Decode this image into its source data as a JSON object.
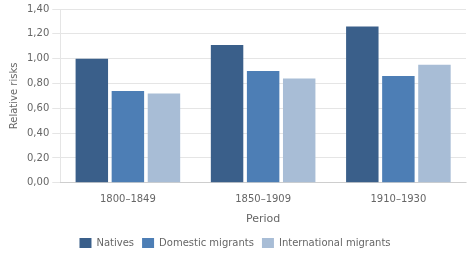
{
  "chart_data": {
    "type": "bar",
    "categories": [
      "1800–1849",
      "1850–1909",
      "1910–1930"
    ],
    "series": [
      {
        "name": "Natives",
        "color": "#3A5F8A",
        "values": [
          1.0,
          1.11,
          1.26
        ]
      },
      {
        "name": "Domestic migrants",
        "color": "#4D7EB5",
        "values": [
          0.74,
          0.9,
          0.86
        ]
      },
      {
        "name": "International migrants",
        "color": "#A8BDD6",
        "values": [
          0.72,
          0.84,
          0.95
        ]
      }
    ],
    "xlabel": "Period",
    "ylabel": "Relative risks",
    "ylim": [
      0,
      1.4
    ],
    "yticks": [
      {
        "value": 0.0,
        "label": "0,00"
      },
      {
        "value": 0.2,
        "label": "0,20"
      },
      {
        "value": 0.4,
        "label": "0,40"
      },
      {
        "value": 0.6,
        "label": "0,60"
      },
      {
        "value": 0.8,
        "label": "0,80"
      },
      {
        "value": 1.0,
        "label": "1,00"
      },
      {
        "value": 1.2,
        "label": "1,20"
      },
      {
        "value": 1.4,
        "label": "1,40"
      }
    ],
    "grid": true,
    "legend": "bottom"
  }
}
